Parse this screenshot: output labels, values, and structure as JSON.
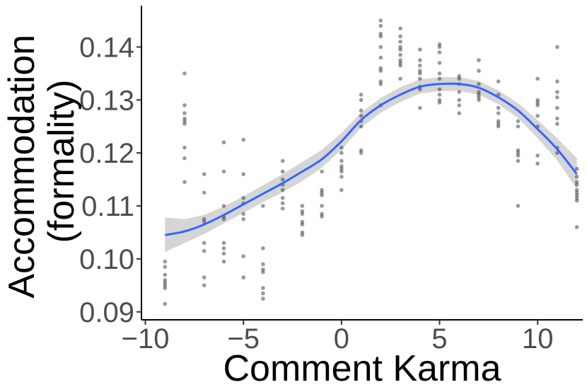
{
  "chart_data": {
    "type": "scatter",
    "title": "",
    "xlabel": "Comment Karma",
    "ylabel_lines": [
      "Accommodation",
      "(formality)"
    ],
    "xlim": [
      -10.2,
      12.3
    ],
    "ylim": [
      0.0885,
      0.1478
    ],
    "x_ticks": [
      -10,
      -5,
      0,
      5,
      10
    ],
    "x_tick_labels": [
      "−10",
      "−5",
      "0",
      "5",
      "10"
    ],
    "y_ticks": [
      0.09,
      0.1,
      0.11,
      0.12,
      0.13,
      0.14
    ],
    "y_tick_labels": [
      "0.09",
      "0.10",
      "0.11",
      "0.12",
      "0.13",
      "0.14"
    ],
    "grid": false,
    "point_color": "#333333",
    "point_opacity": 0.5,
    "smooth_color": "#3366ff",
    "ribbon_color": "#bfbfbf",
    "points": [
      [
        -9,
        0.0995
      ],
      [
        -9,
        0.0985
      ],
      [
        -9,
        0.097
      ],
      [
        -9,
        0.096
      ],
      [
        -9,
        0.0955
      ],
      [
        -9,
        0.095
      ],
      [
        -9,
        0.0945
      ],
      [
        -9,
        0.0915
      ],
      [
        -8,
        0.135
      ],
      [
        -8,
        0.129
      ],
      [
        -8,
        0.1275
      ],
      [
        -8,
        0.1265
      ],
      [
        -8,
        0.126
      ],
      [
        -8,
        0.1255
      ],
      [
        -8,
        0.121
      ],
      [
        -8,
        0.119
      ],
      [
        -8,
        0.1145
      ],
      [
        -7,
        0.116
      ],
      [
        -7,
        0.1125
      ],
      [
        -7,
        0.1075
      ],
      [
        -7,
        0.107
      ],
      [
        -7,
        0.103
      ],
      [
        -7,
        0.1015
      ],
      [
        -7,
        0.0965
      ],
      [
        -7,
        0.095
      ],
      [
        -6,
        0.122
      ],
      [
        -6,
        0.1165
      ],
      [
        -6,
        0.11
      ],
      [
        -6,
        0.108
      ],
      [
        -6,
        0.1075
      ],
      [
        -6,
        0.103
      ],
      [
        -6,
        0.102
      ],
      [
        -6,
        0.101
      ],
      [
        -6,
        0.0995
      ],
      [
        -5,
        0.1225
      ],
      [
        -5,
        0.116
      ],
      [
        -5,
        0.1115
      ],
      [
        -5,
        0.1105
      ],
      [
        -5,
        0.1085
      ],
      [
        -5,
        0.1075
      ],
      [
        -5,
        0.1005
      ],
      [
        -5,
        0.0965
      ],
      [
        -4,
        0.11
      ],
      [
        -4,
        0.102
      ],
      [
        -4,
        0.099
      ],
      [
        -4,
        0.098
      ],
      [
        -4,
        0.0975
      ],
      [
        -4,
        0.0945
      ],
      [
        -4,
        0.0935
      ],
      [
        -4,
        0.0925
      ],
      [
        -3,
        0.1185
      ],
      [
        -3,
        0.1165
      ],
      [
        -3,
        0.115
      ],
      [
        -3,
        0.114
      ],
      [
        -3,
        0.113
      ],
      [
        -3,
        0.1115
      ],
      [
        -3,
        0.1105
      ],
      [
        -3,
        0.1095
      ],
      [
        -2,
        0.11
      ],
      [
        -2,
        0.109
      ],
      [
        -2,
        0.1085
      ],
      [
        -2,
        0.107
      ],
      [
        -2,
        0.1065
      ],
      [
        -2,
        0.105
      ],
      [
        -2,
        0.1045
      ],
      [
        -1,
        0.1165
      ],
      [
        -1,
        0.113
      ],
      [
        -1,
        0.1125
      ],
      [
        -1,
        0.112
      ],
      [
        -1,
        0.11
      ],
      [
        -1,
        0.1085
      ],
      [
        -1,
        0.108
      ],
      [
        0,
        0.121
      ],
      [
        0,
        0.12
      ],
      [
        0,
        0.1185
      ],
      [
        0,
        0.1175
      ],
      [
        0,
        0.117
      ],
      [
        0,
        0.1165
      ],
      [
        0,
        0.1155
      ],
      [
        0,
        0.113
      ],
      [
        1,
        0.131
      ],
      [
        1,
        0.13
      ],
      [
        1,
        0.128
      ],
      [
        1,
        0.127
      ],
      [
        1,
        0.126
      ],
      [
        1,
        0.125
      ],
      [
        1,
        0.1205
      ],
      [
        1,
        0.12
      ],
      [
        2,
        0.145
      ],
      [
        2,
        0.144
      ],
      [
        2,
        0.1425
      ],
      [
        2,
        0.142
      ],
      [
        2,
        0.14
      ],
      [
        2,
        0.138
      ],
      [
        2,
        0.136
      ],
      [
        2,
        0.1355
      ],
      [
        2,
        0.1335
      ],
      [
        2,
        0.133
      ],
      [
        2,
        0.129
      ],
      [
        3,
        0.1435
      ],
      [
        3,
        0.142
      ],
      [
        3,
        0.141
      ],
      [
        3,
        0.14
      ],
      [
        3,
        0.1395
      ],
      [
        3,
        0.1385
      ],
      [
        3,
        0.1375
      ],
      [
        3,
        0.137
      ],
      [
        3,
        0.1365
      ],
      [
        3,
        0.134
      ],
      [
        4,
        0.1395
      ],
      [
        4,
        0.1375
      ],
      [
        4,
        0.1365
      ],
      [
        4,
        0.1355
      ],
      [
        4,
        0.135
      ],
      [
        4,
        0.134
      ],
      [
        4,
        0.1325
      ],
      [
        4,
        0.132
      ],
      [
        4,
        0.1285
      ],
      [
        5,
        0.1405
      ],
      [
        5,
        0.14
      ],
      [
        5,
        0.139
      ],
      [
        5,
        0.137
      ],
      [
        5,
        0.135
      ],
      [
        5,
        0.134
      ],
      [
        5,
        0.132
      ],
      [
        5,
        0.131
      ],
      [
        5,
        0.13
      ],
      [
        5,
        0.1295
      ],
      [
        6,
        0.1345
      ],
      [
        6,
        0.134
      ],
      [
        6,
        0.133
      ],
      [
        6,
        0.1315
      ],
      [
        6,
        0.13
      ],
      [
        6,
        0.129
      ],
      [
        6,
        0.1275
      ],
      [
        7,
        0.1375
      ],
      [
        7,
        0.1355
      ],
      [
        7,
        0.133
      ],
      [
        7,
        0.1315
      ],
      [
        7,
        0.131
      ],
      [
        7,
        0.1305
      ],
      [
        7,
        0.13
      ],
      [
        8,
        0.1335
      ],
      [
        8,
        0.131
      ],
      [
        8,
        0.1285
      ],
      [
        8,
        0.1275
      ],
      [
        8,
        0.126
      ],
      [
        8,
        0.1255
      ],
      [
        8,
        0.125
      ],
      [
        9,
        0.126
      ],
      [
        9,
        0.125
      ],
      [
        9,
        0.1205
      ],
      [
        9,
        0.12
      ],
      [
        9,
        0.1195
      ],
      [
        9,
        0.1185
      ],
      [
        9,
        0.11
      ],
      [
        10,
        0.134
      ],
      [
        10,
        0.13
      ],
      [
        10,
        0.1295
      ],
      [
        10,
        0.129
      ],
      [
        10,
        0.127
      ],
      [
        10,
        0.125
      ],
      [
        10,
        0.1195
      ],
      [
        10,
        0.118
      ],
      [
        11,
        0.14
      ],
      [
        11,
        0.1335
      ],
      [
        11,
        0.1315
      ],
      [
        11,
        0.1305
      ],
      [
        11,
        0.1285
      ],
      [
        11,
        0.1265
      ],
      [
        11,
        0.1255
      ],
      [
        11,
        0.121
      ],
      [
        11,
        0.12
      ],
      [
        12,
        0.117
      ],
      [
        12,
        0.1155
      ],
      [
        12,
        0.1145
      ],
      [
        12,
        0.114
      ],
      [
        12,
        0.113
      ],
      [
        12,
        0.1125
      ],
      [
        12,
        0.112
      ],
      [
        12,
        0.1115
      ],
      [
        12,
        0.111
      ],
      [
        12,
        0.106
      ]
    ],
    "smooth_line": [
      [
        -9,
        0.1045
      ],
      [
        -8,
        0.1052
      ],
      [
        -7,
        0.1065
      ],
      [
        -6,
        0.1083
      ],
      [
        -5,
        0.1103
      ],
      [
        -4,
        0.1123
      ],
      [
        -3,
        0.1143
      ],
      [
        -2,
        0.1165
      ],
      [
        -1,
        0.1188
      ],
      [
        0,
        0.1222
      ],
      [
        1,
        0.1262
      ],
      [
        2,
        0.129
      ],
      [
        3,
        0.131
      ],
      [
        4,
        0.1325
      ],
      [
        5,
        0.133
      ],
      [
        6,
        0.133
      ],
      [
        7,
        0.1323
      ],
      [
        8,
        0.1305
      ],
      [
        9,
        0.128
      ],
      [
        10,
        0.1245
      ],
      [
        11,
        0.1207
      ],
      [
        12,
        0.116
      ]
    ],
    "confidence_band": [
      [
        -9,
        0.1013,
        0.1078
      ],
      [
        -8,
        0.103,
        0.1075
      ],
      [
        -7,
        0.1047,
        0.1083
      ],
      [
        -6,
        0.1067,
        0.1099
      ],
      [
        -5,
        0.1087,
        0.1118
      ],
      [
        -4,
        0.1107,
        0.1139
      ],
      [
        -3,
        0.1126,
        0.116
      ],
      [
        -2,
        0.1147,
        0.1183
      ],
      [
        -1,
        0.1172,
        0.1206
      ],
      [
        0,
        0.1206,
        0.1238
      ],
      [
        1,
        0.1248,
        0.1276
      ],
      [
        2,
        0.1276,
        0.1304
      ],
      [
        3,
        0.1296,
        0.1324
      ],
      [
        4,
        0.1312,
        0.1339
      ],
      [
        5,
        0.1317,
        0.1343
      ],
      [
        6,
        0.1317,
        0.1343
      ],
      [
        7,
        0.131,
        0.1336
      ],
      [
        8,
        0.1292,
        0.1318
      ],
      [
        9,
        0.1266,
        0.1294
      ],
      [
        10,
        0.1228,
        0.1262
      ],
      [
        11,
        0.1186,
        0.1228
      ],
      [
        12,
        0.1132,
        0.119
      ]
    ]
  }
}
